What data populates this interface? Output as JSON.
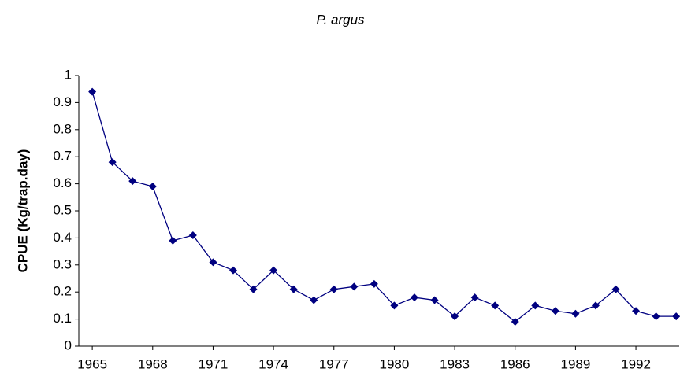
{
  "chart_data": {
    "type": "line",
    "title": "P. argus",
    "ylabel": "CPUE (Kg/trap.day)",
    "x": [
      1965,
      1966,
      1967,
      1968,
      1969,
      1970,
      1971,
      1972,
      1973,
      1974,
      1975,
      1976,
      1977,
      1978,
      1979,
      1980,
      1981,
      1982,
      1983,
      1984,
      1985,
      1986,
      1987,
      1988,
      1989,
      1990,
      1991,
      1992,
      1993,
      1994
    ],
    "series": [
      {
        "name": "P. argus",
        "color": "#000080",
        "values": [
          0.94,
          0.68,
          0.61,
          0.59,
          0.39,
          0.41,
          0.31,
          0.28,
          0.21,
          0.28,
          0.21,
          0.17,
          0.21,
          0.22,
          0.23,
          0.15,
          0.18,
          0.17,
          0.11,
          0.18,
          0.15,
          0.09,
          0.15,
          0.13,
          0.12,
          0.15,
          0.21,
          0.13,
          0.11,
          0.11
        ]
      }
    ],
    "xlim": [
      1964.33,
      1994.15
    ],
    "xticks": [
      1965,
      1968,
      1971,
      1974,
      1977,
      1980,
      1983,
      1986,
      1989,
      1992
    ],
    "ylim": [
      0,
      1
    ],
    "yticks": [
      0,
      0.1,
      0.2,
      0.3,
      0.4,
      0.5,
      0.6,
      0.7,
      0.8,
      0.9,
      1
    ]
  }
}
